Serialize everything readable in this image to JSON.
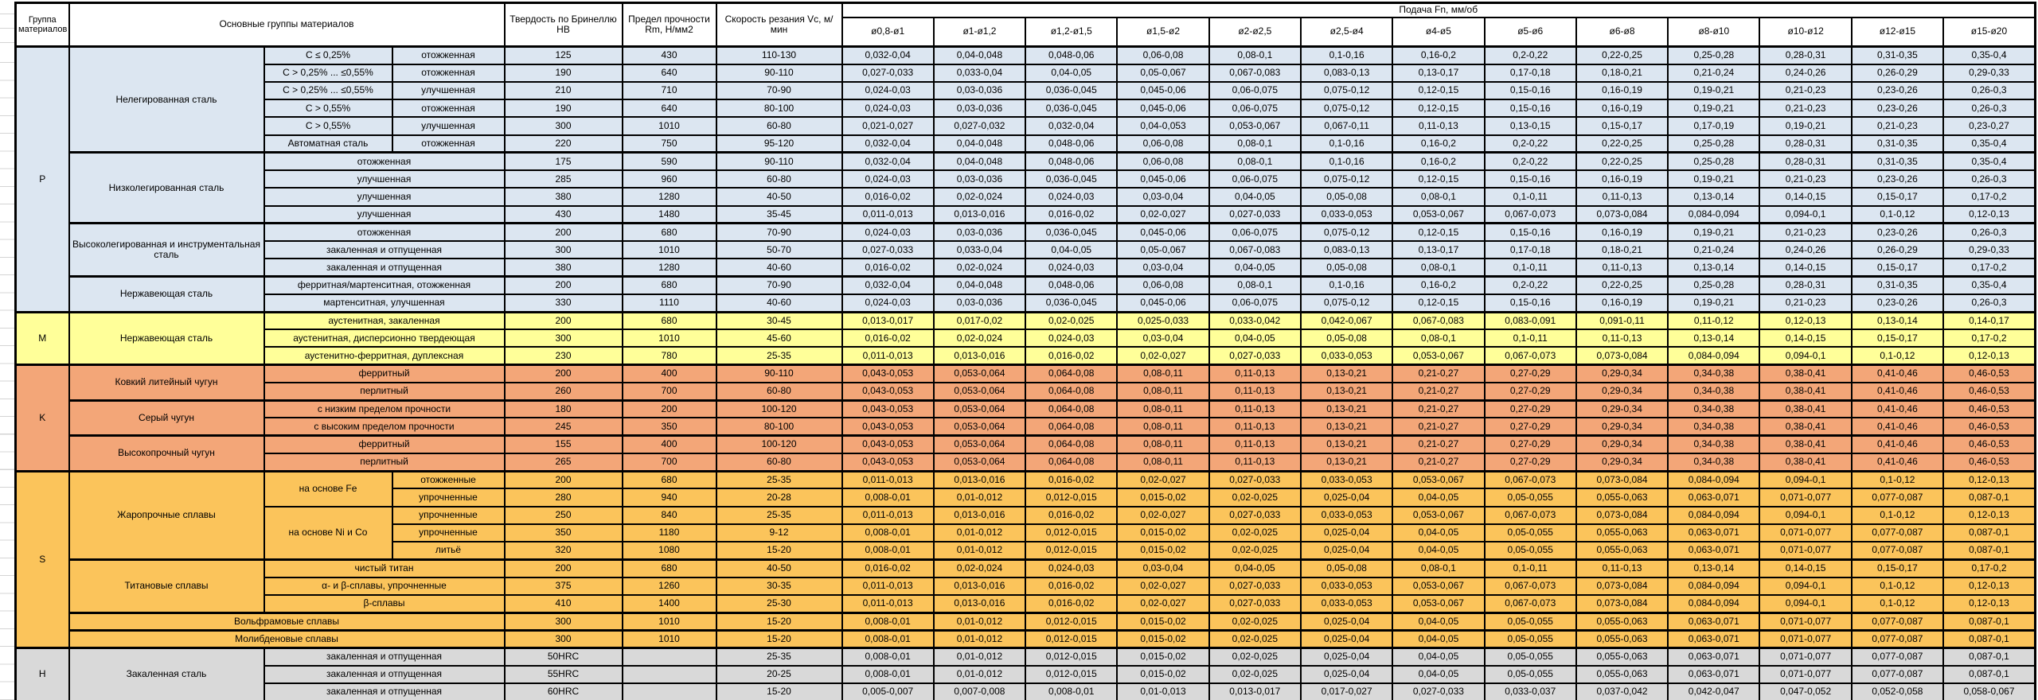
{
  "header": {
    "col_group": "Группа материалов",
    "col_main": "Основные группы материалов",
    "col_hb": "Твердость по Бринеллю HB",
    "col_rm": "Предел прочности Rm, Н/мм2",
    "col_vc": "Скорость резания Vc, м/мин",
    "feed_title": "Подача Fn, мм/об",
    "diameters": [
      "ø0,8-ø1",
      "ø1-ø1,2",
      "ø1,2-ø1,5",
      "ø1,5-ø2",
      "ø2-ø2,5",
      "ø2,5-ø4",
      "ø4-ø5",
      "ø5-ø6",
      "ø6-ø8",
      "ø8-ø10",
      "ø10-ø12",
      "ø12-ø15",
      "ø15-ø20"
    ]
  },
  "patterns": {
    "A": [
      "0,032-0,04",
      "0,04-0,048",
      "0,048-0,06",
      "0,06-0,08",
      "0,08-0,1",
      "0,1-0,16",
      "0,16-0,2",
      "0,2-0,22",
      "0,22-0,25",
      "0,25-0,28",
      "0,28-0,31",
      "0,31-0,35",
      "0,35-0,4"
    ],
    "B": [
      "0,027-0,033",
      "0,033-0,04",
      "0,04-0,05",
      "0,05-0,067",
      "0,067-0,083",
      "0,083-0,13",
      "0,13-0,17",
      "0,17-0,18",
      "0,18-0,21",
      "0,21-0,24",
      "0,24-0,26",
      "0,26-0,29",
      "0,29-0,33"
    ],
    "C": [
      "0,024-0,03",
      "0,03-0,036",
      "0,036-0,045",
      "0,045-0,06",
      "0,06-0,075",
      "0,075-0,12",
      "0,12-0,15",
      "0,15-0,16",
      "0,16-0,19",
      "0,19-0,21",
      "0,21-0,23",
      "0,23-0,26",
      "0,26-0,3"
    ],
    "G": [
      "0,021-0,027",
      "0,027-0,032",
      "0,032-0,04",
      "0,04-0,053",
      "0,053-0,067",
      "0,067-0,11",
      "0,11-0,13",
      "0,13-0,15",
      "0,15-0,17",
      "0,17-0,19",
      "0,19-0,21",
      "0,21-0,23",
      "0,23-0,27"
    ],
    "D": [
      "0,016-0,02",
      "0,02-0,024",
      "0,024-0,03",
      "0,03-0,04",
      "0,04-0,05",
      "0,05-0,08",
      "0,08-0,1",
      "0,1-0,11",
      "0,11-0,13",
      "0,13-0,14",
      "0,14-0,15",
      "0,15-0,17",
      "0,17-0,2"
    ],
    "E": [
      "0,011-0,013",
      "0,013-0,016",
      "0,016-0,02",
      "0,02-0,027",
      "0,027-0,033",
      "0,033-0,053",
      "0,053-0,067",
      "0,067-0,073",
      "0,073-0,084",
      "0,084-0,094",
      "0,094-0,1",
      "0,1-0,12",
      "0,12-0,13"
    ],
    "M1": [
      "0,013-0,017",
      "0,017-0,02",
      "0,02-0,025",
      "0,025-0,033",
      "0,033-0,042",
      "0,042-0,067",
      "0,067-0,083",
      "0,083-0,091",
      "0,091-0,11",
      "0,11-0,12",
      "0,12-0,13",
      "0,13-0,14",
      "0,14-0,17"
    ],
    "K1": [
      "0,043-0,053",
      "0,053-0,064",
      "0,064-0,08",
      "0,08-0,11",
      "0,11-0,13",
      "0,13-0,21",
      "0,21-0,27",
      "0,27-0,29",
      "0,29-0,34",
      "0,34-0,38",
      "0,38-0,41",
      "0,41-0,46",
      "0,46-0,53"
    ],
    "F": [
      "0,008-0,01",
      "0,01-0,012",
      "0,012-0,015",
      "0,015-0,02",
      "0,02-0,025",
      "0,025-0,04",
      "0,04-0,05",
      "0,05-0,055",
      "0,055-0,063",
      "0,063-0,071",
      "0,071-0,077",
      "0,077-0,087",
      "0,087-0,1"
    ],
    "H60": [
      "0,005-0,007",
      "0,007-0,008",
      "0,008-0,01",
      "0,01-0,013",
      "0,013-0,017",
      "0,017-0,027",
      "0,027-0,033",
      "0,033-0,037",
      "0,037-0,042",
      "0,042-0,047",
      "0,047-0,052",
      "0,052-0,058",
      "0,058-0,067"
    ]
  },
  "groups": [
    {
      "letter": "P",
      "color": "#DCE6F1",
      "families": [
        {
          "name": "Нелегированная сталь",
          "rows": [
            {
              "spec": "C ≤ 0,25%",
              "treat": "отожженная",
              "hb": "125",
              "rm": "430",
              "vc": "110-130",
              "f": "A"
            },
            {
              "spec": "C > 0,25% ... ≤0,55%",
              "treat": "отожженная",
              "hb": "190",
              "rm": "640",
              "vc": "90-110",
              "f": "B"
            },
            {
              "spec": "C > 0,25% ... ≤0,55%",
              "treat": "улучшенная",
              "hb": "210",
              "rm": "710",
              "vc": "70-90",
              "f": "C"
            },
            {
              "spec": "C > 0,55%",
              "treat": "отожженная",
              "hb": "190",
              "rm": "640",
              "vc": "80-100",
              "f": "C"
            },
            {
              "spec": "C > 0,55%",
              "treat": "улучшенная",
              "hb": "300",
              "rm": "1010",
              "vc": "60-80",
              "f": "G"
            },
            {
              "spec": "Автоматная сталь",
              "treat": "отожженная",
              "hb": "220",
              "rm": "750",
              "vc": "95-120",
              "f": "A"
            }
          ]
        },
        {
          "name": "Низколегированная сталь",
          "rows": [
            {
              "treat": "отожженная",
              "hb": "175",
              "rm": "590",
              "vc": "90-110",
              "f": "A"
            },
            {
              "treat": "улучшенная",
              "hb": "285",
              "rm": "960",
              "vc": "60-80",
              "f": "C"
            },
            {
              "treat": "улучшенная",
              "hb": "380",
              "rm": "1280",
              "vc": "40-50",
              "f": "D"
            },
            {
              "treat": "улучшенная",
              "hb": "430",
              "rm": "1480",
              "vc": "35-45",
              "f": "E"
            }
          ]
        },
        {
          "name": "Высоколегированная и инструментальная сталь",
          "rows": [
            {
              "treat": "отожженная",
              "hb": "200",
              "rm": "680",
              "vc": "70-90",
              "f": "C"
            },
            {
              "treat": "закаленная и отпущенная",
              "hb": "300",
              "rm": "1010",
              "vc": "50-70",
              "f": "B"
            },
            {
              "treat": "закаленная и отпущенная",
              "hb": "380",
              "rm": "1280",
              "vc": "40-60",
              "f": "D"
            }
          ]
        },
        {
          "name": "Нержавеющая сталь",
          "rows": [
            {
              "treat": "ферритная/мартенситная, отожженная",
              "hb": "200",
              "rm": "680",
              "vc": "70-90",
              "f": "A"
            },
            {
              "treat": "мартенситная, улучшенная",
              "hb": "330",
              "rm": "1110",
              "vc": "40-60",
              "f": "C"
            }
          ]
        }
      ]
    },
    {
      "letter": "M",
      "color": "#FFFF99",
      "families": [
        {
          "name": "Нержавеющая сталь",
          "rows": [
            {
              "treat": "аустенитная, закаленная",
              "hb": "200",
              "rm": "680",
              "vc": "30-45",
              "f": "M1"
            },
            {
              "treat": "аустенитная, дисперсионно твердеющая",
              "hb": "300",
              "rm": "1010",
              "vc": "45-60",
              "f": "D"
            },
            {
              "treat": "аустенитно-ферритная, дуплексная",
              "hb": "230",
              "rm": "780",
              "vc": "25-35",
              "f": "E"
            }
          ]
        }
      ]
    },
    {
      "letter": "K",
      "color": "#F3A678",
      "families": [
        {
          "name": "Ковкий литейный чугун",
          "rows": [
            {
              "treat": "ферритный",
              "hb": "200",
              "rm": "400",
              "vc": "90-110",
              "f": "K1"
            },
            {
              "treat": "перлитный",
              "hb": "260",
              "rm": "700",
              "vc": "60-80",
              "f": "K1"
            }
          ]
        },
        {
          "name": "Серый чугун",
          "rows": [
            {
              "treat": "с низким пределом прочности",
              "hb": "180",
              "rm": "200",
              "vc": "100-120",
              "f": "K1"
            },
            {
              "treat": "с высоким пределом прочности",
              "hb": "245",
              "rm": "350",
              "vc": "80-100",
              "f": "K1"
            }
          ]
        },
        {
          "name": "Высокопрочный чугун",
          "rows": [
            {
              "treat": "ферритный",
              "hb": "155",
              "rm": "400",
              "vc": "100-120",
              "f": "K1"
            },
            {
              "treat": "перлитный",
              "hb": "265",
              "rm": "700",
              "vc": "60-80",
              "f": "K1"
            }
          ]
        }
      ]
    },
    {
      "letter": "S",
      "color": "#FBC45B",
      "families": [
        {
          "name": "Жаропрочные сплавы",
          "rows": [
            {
              "spec": "на основе Fe",
              "spec_span": 2,
              "treat": "отожженные",
              "hb": "200",
              "rm": "680",
              "vc": "25-35",
              "f": "E"
            },
            {
              "treat": "упрочненные",
              "hb": "280",
              "rm": "940",
              "vc": "20-28",
              "f": "F"
            },
            {
              "spec": "на основе Ni и Co",
              "spec_span": 3,
              "treat": "упрочненные",
              "hb": "250",
              "rm": "840",
              "vc": "25-35",
              "f": "E"
            },
            {
              "treat": "упрочненные",
              "hb": "350",
              "rm": "1180",
              "vc": "9-12",
              "f": "F"
            },
            {
              "treat": "литьё",
              "hb": "320",
              "rm": "1080",
              "vc": "15-20",
              "f": "F"
            }
          ]
        },
        {
          "name": "Титановые сплавы",
          "rows": [
            {
              "treat": "чистый титан",
              "hb": "200",
              "rm": "680",
              "vc": "40-50",
              "f": "D"
            },
            {
              "treat": "α- и β-сплавы, упрочненные",
              "hb": "375",
              "rm": "1260",
              "vc": "30-35",
              "f": "E"
            },
            {
              "treat": "β-сплавы",
              "hb": "410",
              "rm": "1400",
              "vc": "25-30",
              "f": "E"
            }
          ]
        },
        {
          "name": "Вольфрамовые сплавы",
          "wide": true,
          "rows": [
            {
              "hb": "300",
              "rm": "1010",
              "vc": "15-20",
              "f": "F"
            }
          ]
        },
        {
          "name": "Молибденовые сплавы",
          "wide": true,
          "rows": [
            {
              "hb": "300",
              "rm": "1010",
              "vc": "15-20",
              "f": "F"
            }
          ]
        }
      ]
    },
    {
      "letter": "H",
      "color": "#D9D9D9",
      "families": [
        {
          "name": "Закаленная сталь",
          "rows": [
            {
              "treat": "закаленная и отпущенная",
              "hb": "50HRC",
              "rm": "",
              "vc": "25-35",
              "f": "F"
            },
            {
              "treat": "закаленная и отпущенная",
              "hb": "55HRC",
              "rm": "",
              "vc": "20-25",
              "f": "F"
            },
            {
              "treat": "закаленная и отпущенная",
              "hb": "60HRC",
              "rm": "",
              "vc": "15-20",
              "f": "H60"
            }
          ]
        }
      ]
    }
  ]
}
